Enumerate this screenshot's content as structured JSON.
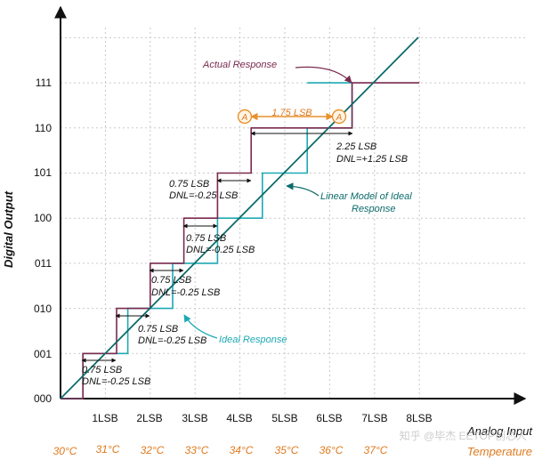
{
  "axes": {
    "y_title": "Digital Output",
    "x_title": "Analog Input",
    "temp_title": "Temperature",
    "y_codes": [
      "000",
      "001",
      "010",
      "011",
      "100",
      "101",
      "110",
      "111"
    ],
    "x_ticks": [
      "1LSB",
      "2LSB",
      "3LSB",
      "4LSB",
      "5LSB",
      "6LSB",
      "7LSB",
      "8LSB"
    ],
    "temperatures": [
      "30°C",
      "31°C",
      "32°C",
      "33°C",
      "34°C",
      "35°C",
      "36°C",
      "37°C"
    ]
  },
  "callouts": {
    "actual": "Actual Response",
    "linear": "Linear Model of Ideal",
    "linear2": "Response",
    "ideal": "Ideal Response",
    "marker": "A",
    "dist": "1.75 LSB"
  },
  "steps": [
    {
      "lsb": "0.75 LSB",
      "dnl": "DNL=-0.25 LSB"
    },
    {
      "lsb": "0.75 LSB",
      "dnl": "DNL=-0.25 LSB"
    },
    {
      "lsb": "0.75 LSB",
      "dnl": "DNL=-0.25 LSB"
    },
    {
      "lsb": "0.75 LSB",
      "dnl": "DNL=-0.25 LSB"
    },
    {
      "lsb": "0.75 LSB",
      "dnl": "DNL=-0.25 LSB"
    },
    {
      "lsb": "2.25 LSB",
      "dnl": "DNL=+1.25 LSB"
    }
  ],
  "watermark": "知乎 @毕杰 EETOP创芯人",
  "colors": {
    "actual": "#7a2a4e",
    "ideal": "#1ea9b3",
    "linear": "#0d6b6b",
    "temp": "#e07a1f",
    "marker": "#e8912f"
  }
}
